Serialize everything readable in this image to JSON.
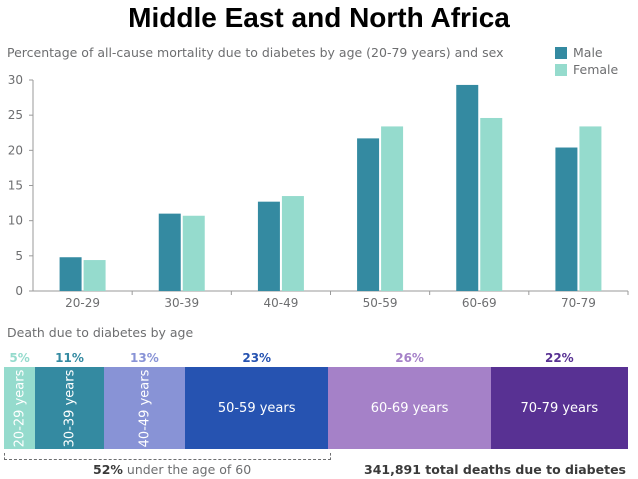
{
  "page_title": "Middle East and North Africa",
  "chart_data": [
    {
      "type": "bar",
      "title": "Percentage of all-cause mortality due to diabetes by age (20-79 years) and sex",
      "xlabel": "",
      "ylabel": "",
      "categories": [
        "20-29",
        "30-39",
        "40-49",
        "50-59",
        "60-69",
        "70-79"
      ],
      "series": [
        {
          "name": "Male",
          "color": "#348aa1",
          "values": [
            4.8,
            11.0,
            12.7,
            21.7,
            29.3,
            20.4
          ]
        },
        {
          "name": "Female",
          "color": "#95dbcd",
          "values": [
            4.4,
            10.7,
            13.5,
            23.4,
            24.6,
            23.4
          ]
        }
      ],
      "ylim": [
        0,
        30
      ],
      "yticks": [
        "0",
        "5",
        "10",
        "15",
        "20",
        "25",
        "30"
      ],
      "legend": "top-right",
      "grid": false
    },
    {
      "type": "bar",
      "title": "Death due to diabetes by age",
      "segments": [
        {
          "label": "20-29 years",
          "percent": 5,
          "percent_label": "5%",
          "color": "#95dbcd",
          "orientation": "vertical"
        },
        {
          "label": "30-39 years",
          "percent": 11,
          "percent_label": "11%",
          "color": "#348aa1",
          "orientation": "vertical"
        },
        {
          "label": "40-49 years",
          "percent": 13,
          "percent_label": "13%",
          "color": "#8893d6",
          "orientation": "vertical"
        },
        {
          "label": "50-59 years",
          "percent": 23,
          "percent_label": "23%",
          "color": "#2653b1",
          "orientation": "horizontal"
        },
        {
          "label": "60-69 years",
          "percent": 26,
          "percent_label": "26%",
          "color": "#a581c8",
          "orientation": "horizontal"
        },
        {
          "label": "70-79 years",
          "percent": 22,
          "percent_label": "22%",
          "color": "#583193",
          "orientation": "horizontal"
        }
      ],
      "under_60_percent": "52%",
      "under_60_text": "under the age of 60",
      "total_deaths_text": "341,891 total deaths due to diabetes"
    }
  ]
}
